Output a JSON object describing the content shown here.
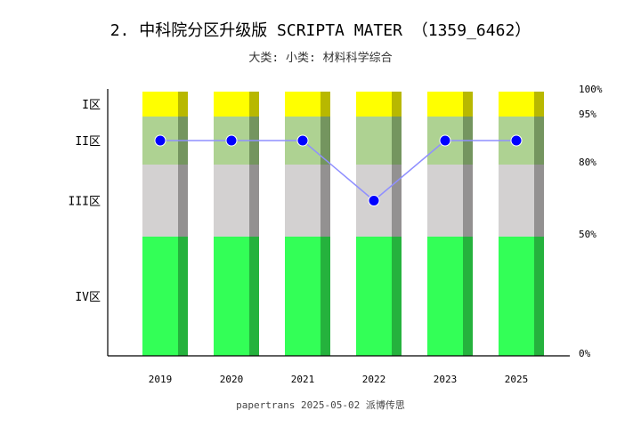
{
  "chart_data": {
    "type": "bar",
    "title": "2. 中科院分区升级版 SCRIPTA MATER （1359_6462）",
    "subtitle": "大类:  小类: 材料科学综合",
    "footer": "papertrans 2025-05-02 派博传思",
    "categories": [
      "2019",
      "2020",
      "2021",
      "2022",
      "2023",
      "2025"
    ],
    "zones": [
      {
        "label": "I区",
        "from": 95,
        "to": 100,
        "color": "#ffff00",
        "shade": "#b8b800"
      },
      {
        "label": "II区",
        "from": 80,
        "to": 95,
        "color": "#aed292",
        "shade": "#74955f"
      },
      {
        "label": "III区",
        "from": 50,
        "to": 80,
        "color": "#d3d1d1",
        "shade": "#939191"
      },
      {
        "label": "IV区",
        "from": 0,
        "to": 50,
        "color": "#33ff57",
        "shade": "#25b23d"
      }
    ],
    "right_ticks": [
      "100%",
      "95%",
      "80%",
      "50%",
      "0%"
    ],
    "series": [
      {
        "values": [
          "II区",
          "II区",
          "II区",
          "III区",
          "II区",
          "II区"
        ],
        "color": "#0000ff",
        "line_color": "#8f8fff"
      }
    ],
    "grid": false
  }
}
